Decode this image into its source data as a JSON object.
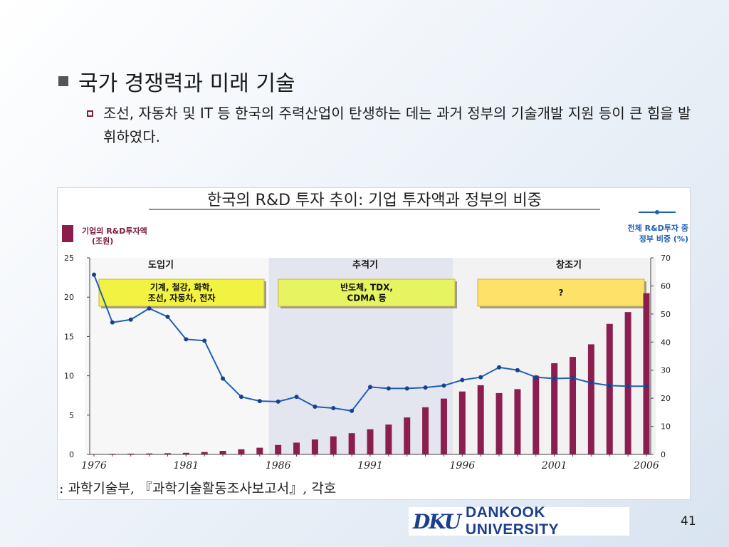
{
  "slide": {
    "title": "국가 경쟁력과 미래 기술",
    "bullet": "조선, 자동차 및 IT 등 한국의 주력산업이 탄생하는 데는 과거 정부의 기술개발 지원 등이 큰 힘을 발휘하였다.",
    "logo_mark": "DKU",
    "logo_text": "DANKOOK UNIVERSITY",
    "page_number": "41"
  },
  "chart_data": {
    "type": "bar",
    "title": "한국의 R&D 투자 추이: 기업 투자액과 정부의 비중",
    "source": ": 과학기술부, 『과학기술활동조사보고서』, 각호",
    "bar_legend": [
      "기업의 R&D투자액",
      "(조원)"
    ],
    "line_legend": [
      "전체 R&D투자 중",
      "정부 비중 (%)"
    ],
    "x": [
      1976,
      1977,
      1978,
      1979,
      1980,
      1981,
      1982,
      1983,
      1984,
      1985,
      1986,
      1987,
      1988,
      1989,
      1990,
      1991,
      1992,
      1993,
      1994,
      1995,
      1996,
      1997,
      1998,
      1999,
      2000,
      2001,
      2002,
      2003,
      2004,
      2005,
      2006
    ],
    "xticks": [
      "1976",
      "1981",
      "1986",
      "1991",
      "1996",
      "2001",
      "2006"
    ],
    "series": [
      {
        "name": "기업의 R&D투자액",
        "axis": "left",
        "color": "#8b1e4f",
        "values": [
          0.05,
          0.08,
          0.1,
          0.12,
          0.15,
          0.2,
          0.3,
          0.45,
          0.65,
          0.85,
          1.2,
          1.5,
          1.9,
          2.3,
          2.7,
          3.2,
          3.8,
          4.7,
          6.0,
          7.1,
          8.0,
          8.8,
          7.8,
          8.3,
          10.0,
          11.6,
          12.4,
          14.0,
          16.6,
          18.1,
          20.5
        ]
      },
      {
        "name": "정부 비중",
        "axis": "right",
        "color": "#1e5fb4",
        "values": [
          64,
          47,
          48,
          52,
          49,
          41,
          40.5,
          27,
          20.5,
          19,
          18.8,
          20.5,
          17,
          16.5,
          15.5,
          24,
          23.5,
          23.5,
          23.8,
          24.5,
          26.5,
          27.5,
          31,
          30,
          27.5,
          27,
          27.2,
          25.5,
          24.5,
          24.3,
          24.3
        ]
      }
    ],
    "ylim_left": [
      0,
      25
    ],
    "yticks_left": [
      "0",
      "5",
      "10",
      "15",
      "20",
      "25"
    ],
    "ylim_right": [
      0,
      70
    ],
    "yticks_right": [
      "0",
      "10",
      "20",
      "30",
      "40",
      "50",
      "60",
      "70"
    ],
    "periods": [
      {
        "name": "도입기",
        "box_text": [
          "기계, 철강, 화학,",
          "조선, 자동차, 전자"
        ],
        "box_color": "#f2f242"
      },
      {
        "name": "추격기",
        "box_text": [
          "반도체, TDX,",
          "CDMA 등"
        ],
        "box_color": "#e6f462"
      },
      {
        "name": "창조기",
        "box_text": [
          "?"
        ],
        "box_color": "#fde168"
      }
    ]
  }
}
